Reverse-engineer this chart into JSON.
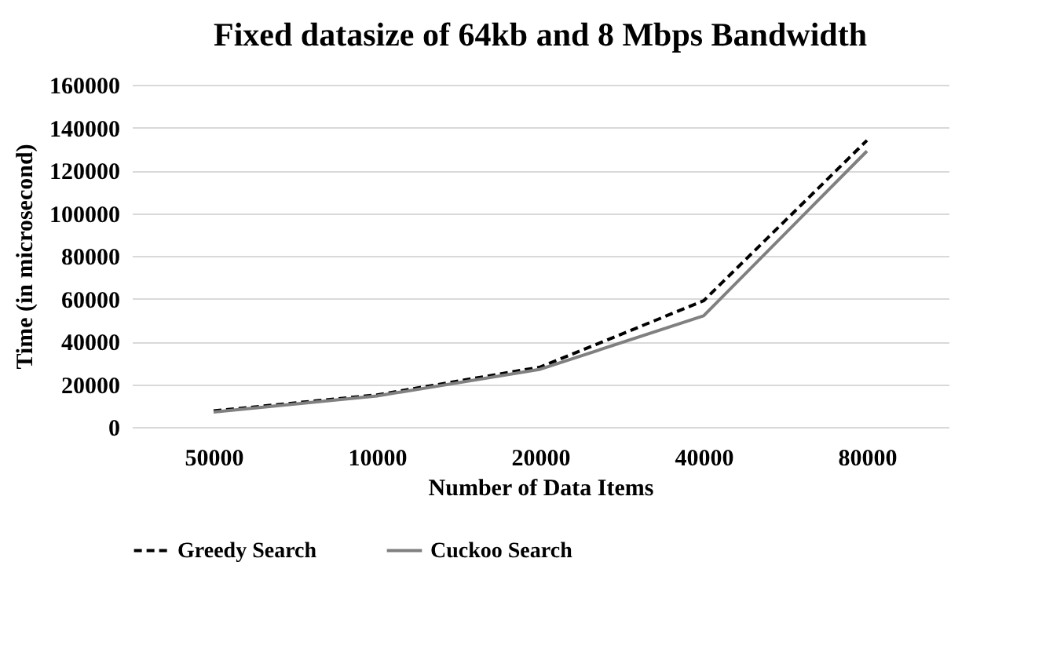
{
  "chart_data": {
    "type": "line",
    "title": "Fixed datasize of 64kb and 8 Mbps Bandwidth",
    "xlabel": "Number of Data Items",
    "ylabel": "Time (in microsecond)",
    "categories": [
      "50000",
      "10000",
      "20000",
      "40000",
      "80000"
    ],
    "series": [
      {
        "name": "Greedy Search",
        "color": "#000000",
        "line_style": "dashed",
        "values": [
          7500,
          15000,
          28000,
          59000,
          134000
        ]
      },
      {
        "name": "Cuckoo Search",
        "color": "#808080",
        "line_style": "solid",
        "values": [
          7000,
          14500,
          27000,
          52000,
          129000
        ]
      }
    ],
    "ylim": [
      0,
      160000
    ],
    "yticks": [
      0,
      20000,
      40000,
      60000,
      80000,
      100000,
      120000,
      140000,
      160000
    ],
    "grid": "y",
    "legend": "bottom",
    "marker": "none"
  }
}
